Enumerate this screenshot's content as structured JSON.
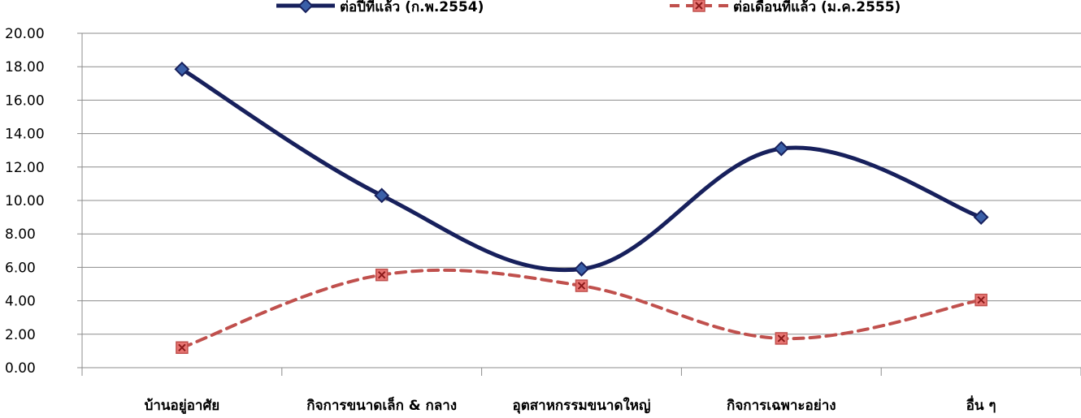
{
  "chart_data": {
    "type": "line",
    "categories": [
      "บ้านอยู่อาศัย",
      "กิจการขนาดเล็ก & กลาง",
      "อุตสาหกรรมขนาดใหญ่",
      "กิจการเฉพาะอย่าง",
      "อื่น ๆ"
    ],
    "series": [
      {
        "name": "ต่อปีที่แล้ว (ก.พ.2554)",
        "values": [
          17.85,
          10.3,
          5.9,
          13.1,
          9.0
        ],
        "color": "#17205c",
        "style": "solid",
        "marker": "diamond"
      },
      {
        "name": "ต่อเดือนที่แล้ว (ม.ค.2555)",
        "values": [
          1.2,
          5.55,
          4.9,
          1.75,
          4.05
        ],
        "color": "#c0504d",
        "style": "dashed",
        "marker": "square-x"
      }
    ],
    "ylim": [
      0,
      20
    ],
    "yticks": [
      "0.00",
      "2.00",
      "4.00",
      "6.00",
      "8.00",
      "10.00",
      "12.00",
      "14.00",
      "16.00",
      "18.00",
      "20.00"
    ],
    "grid": true,
    "legend_position": "top"
  }
}
